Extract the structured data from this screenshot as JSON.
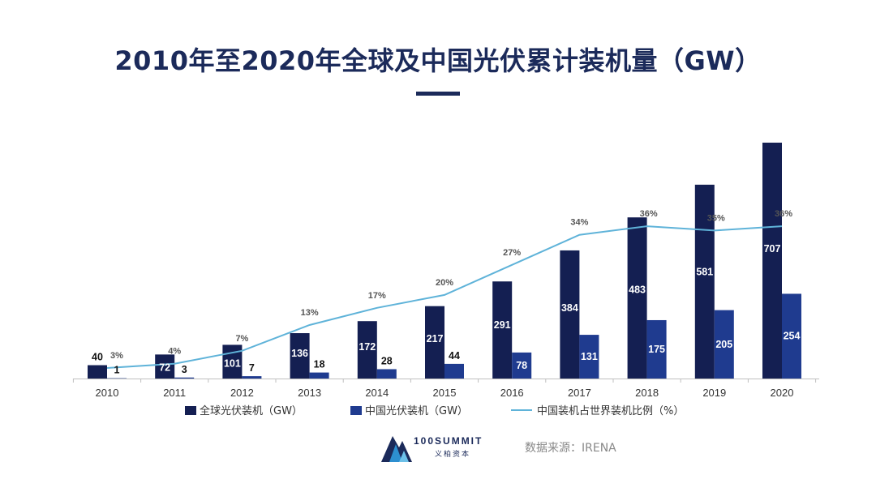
{
  "chart_data": {
    "type": "bar",
    "title": "2010年至2020年全球及中国光伏累计装机量（GW）",
    "categories": [
      "2010",
      "2011",
      "2012",
      "2013",
      "2014",
      "2015",
      "2016",
      "2017",
      "2018",
      "2019",
      "2020"
    ],
    "series": [
      {
        "name": "全球光伏装机（GW）",
        "type": "bar",
        "color": "#141f52",
        "values": [
          40,
          72,
          101,
          136,
          172,
          217,
          291,
          384,
          483,
          581,
          707
        ]
      },
      {
        "name": "中国光伏装机（GW）",
        "type": "bar",
        "color": "#1f3b8f",
        "values": [
          1,
          3,
          7,
          18,
          28,
          44,
          78,
          131,
          175,
          205,
          254
        ]
      },
      {
        "name": "中国装机占世界装机比例（%）",
        "type": "line",
        "color": "#5fb3d9",
        "values": [
          3,
          4,
          7,
          13,
          17,
          20,
          27,
          34,
          36,
          35,
          36
        ],
        "labels": [
          "3%",
          "4%",
          "7%",
          "13%",
          "17%",
          "20%",
          "27%",
          "34%",
          "36%",
          "35%",
          "36%"
        ]
      }
    ],
    "ylim": [
      0,
      707
    ],
    "legend_position": "bottom"
  },
  "brand": {
    "name": "100SUMMIT",
    "sub": "义柏资本"
  },
  "source": "数据来源：IRENA"
}
